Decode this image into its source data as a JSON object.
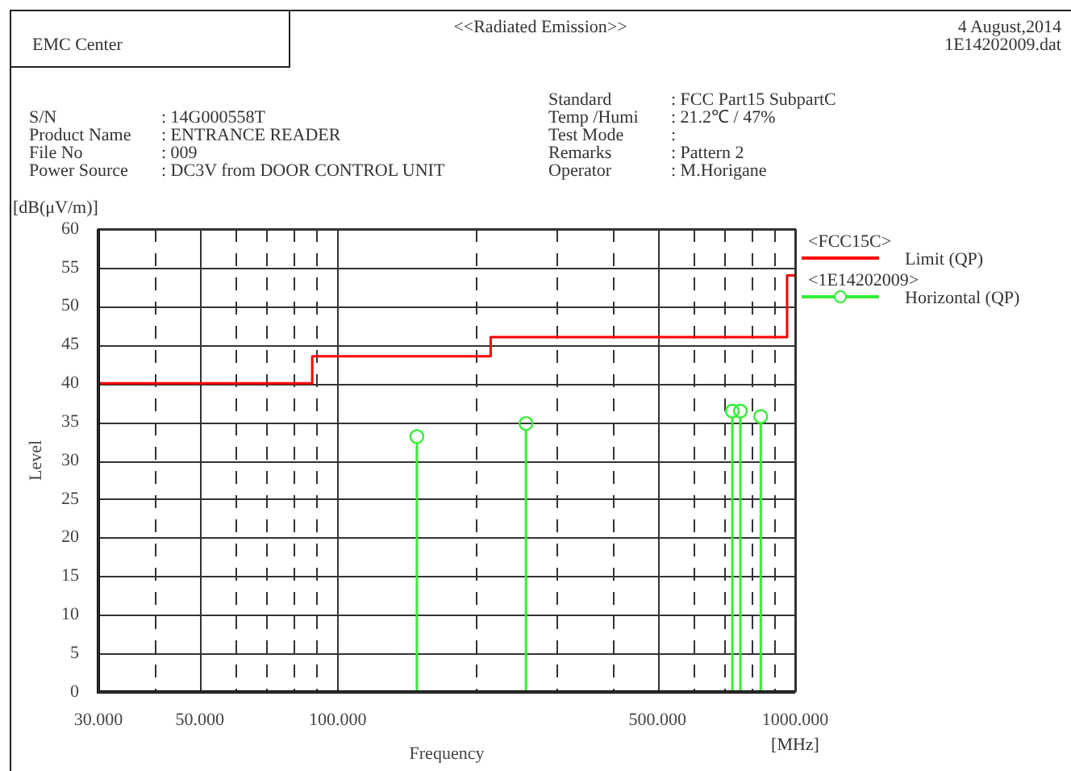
{
  "chart_data": {
    "type": "line",
    "title": "<<Radiated Emission>>",
    "xlabel": "Frequency",
    "ylabel": "Level",
    "annotations": [
      "EMC Center",
      "4 August,2014",
      "1E14202009.dat",
      "S/N",
      ": 14G000558T",
      "Product Name",
      ": ENTRANCE READER",
      "File No",
      ": 009",
      "Power Source",
      ": DC3V from DOOR CONTROL UNIT",
      "Standard",
      ": FCC Part15 SubpartC",
      "Temp /Humi",
      ": 21.2℃ / 47%",
      "Test Mode",
      ":",
      "Remarks",
      ": Pattern 2",
      "Operator",
      ": M.Horigane",
      "[dB(μV/m)]",
      "[MHz]",
      "<FCC15C>",
      "<1E14202009>"
    ],
    "series": [
      {
        "name": "Limit (QP)",
        "type": "step",
        "color": "#ff0000",
        "marker": "none",
        "x": [
          30,
          88,
          216,
          960,
          1000
        ],
        "values": [
          40,
          43.5,
          46,
          54,
          54
        ]
      },
      {
        "name": "Horizontal (QP)",
        "type": "lollipop",
        "color": "#33ee33",
        "marker": "circle",
        "x": [
          149,
          258,
          729,
          759,
          841
        ],
        "values": [
          33.1,
          34.8,
          36.4,
          36.4,
          35.7
        ]
      }
    ],
    "log": "x",
    "xlim": [
      30,
      1000
    ],
    "ylim": [
      0,
      60
    ],
    "xticks": [
      {
        "value": 30,
        "label": "30.000"
      },
      {
        "value": 40,
        "label": null
      },
      {
        "value": 50,
        "label": "50.000"
      },
      {
        "value": 60,
        "label": null
      },
      {
        "value": 70,
        "label": null
      },
      {
        "value": 80,
        "label": null
      },
      {
        "value": 90,
        "label": null
      },
      {
        "value": 100,
        "label": "100.000"
      },
      {
        "value": 200,
        "label": null
      },
      {
        "value": 300,
        "label": null
      },
      {
        "value": 400,
        "label": null
      },
      {
        "value": 500,
        "label": "500.000"
      },
      {
        "value": 600,
        "label": null
      },
      {
        "value": 700,
        "label": null
      },
      {
        "value": 800,
        "label": null
      },
      {
        "value": 900,
        "label": null
      },
      {
        "value": 1000,
        "label": "1000.000"
      }
    ],
    "yticks": [
      0,
      5,
      10,
      15,
      20,
      25,
      30,
      35,
      40,
      45,
      50,
      55,
      60
    ],
    "grid": true,
    "legend": "top right"
  }
}
